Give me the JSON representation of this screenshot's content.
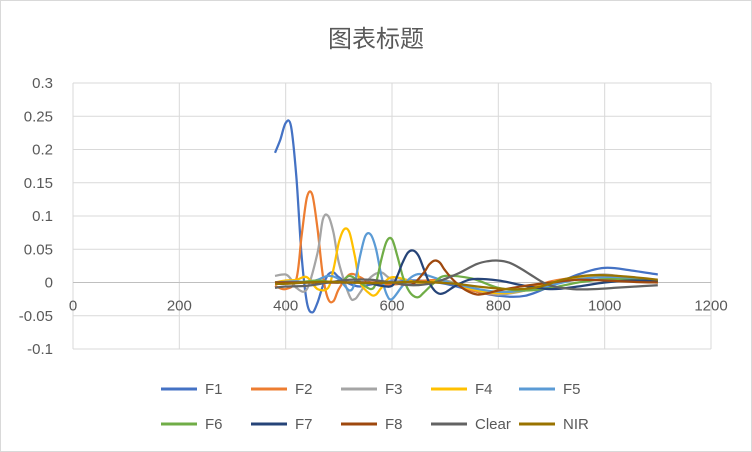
{
  "chart_data": {
    "type": "line",
    "title": "图表标题",
    "xlabel": "",
    "ylabel": "",
    "xlim": [
      0,
      1200
    ],
    "ylim": [
      -0.1,
      0.3
    ],
    "x_ticks": [
      0,
      200,
      400,
      600,
      800,
      1000,
      1200
    ],
    "y_ticks": [
      -0.1,
      -0.05,
      0,
      0.05,
      0.1,
      0.15,
      0.2,
      0.25,
      0.3
    ],
    "y_tick_labels": [
      "-0.1",
      "-0.05",
      "0",
      "0.05",
      "0.1",
      "0.15",
      "0.2",
      "0.25",
      "0.3"
    ],
    "x_tick_labels": [
      "0",
      "200",
      "400",
      "600",
      "800",
      "1000",
      "1200"
    ],
    "grid": "horizontal and vertical",
    "legend_position": "bottom",
    "series": [
      {
        "name": "F1",
        "color": "#4472C4",
        "x": [
          380,
          390,
          400,
          410,
          420,
          430,
          440,
          450,
          460,
          470,
          480,
          490,
          500,
          520,
          540,
          560,
          600,
          650,
          700,
          750,
          800,
          850,
          900,
          950,
          1000,
          1050,
          1100
        ],
        "values": [
          0.195,
          0.215,
          0.24,
          0.235,
          0.16,
          0.04,
          -0.03,
          -0.045,
          -0.03,
          -0.005,
          0.012,
          0.015,
          0.008,
          -0.002,
          -0.006,
          -0.003,
          0.002,
          0.003,
          -0.002,
          -0.012,
          -0.02,
          -0.02,
          -0.005,
          0.012,
          0.022,
          0.018,
          0.012
        ]
      },
      {
        "name": "F2",
        "color": "#ED7D31",
        "x": [
          380,
          400,
          420,
          430,
          440,
          450,
          460,
          470,
          480,
          490,
          500,
          520,
          540,
          560,
          600,
          650,
          700,
          750,
          800,
          850,
          900,
          950,
          1000,
          1050,
          1100
        ],
        "values": [
          -0.005,
          -0.01,
          0.005,
          0.07,
          0.128,
          0.132,
          0.08,
          0.01,
          -0.025,
          -0.028,
          -0.01,
          0.012,
          0.008,
          0.0,
          -0.003,
          0.002,
          0.003,
          -0.012,
          -0.018,
          -0.01,
          0.002,
          0.008,
          0.01,
          0.005,
          0.0
        ]
      },
      {
        "name": "F3",
        "color": "#A5A5A5",
        "x": [
          380,
          400,
          410,
          420,
          440,
          460,
          470,
          480,
          490,
          500,
          520,
          530,
          540,
          560,
          580,
          600,
          650,
          700,
          750,
          800,
          850,
          900,
          950,
          1000,
          1050,
          1100
        ],
        "values": [
          0.01,
          0.012,
          0.005,
          -0.008,
          -0.01,
          0.045,
          0.095,
          0.1,
          0.075,
          0.03,
          -0.02,
          -0.025,
          -0.015,
          0.008,
          0.015,
          0.005,
          -0.003,
          0.003,
          -0.01,
          -0.018,
          -0.012,
          0.0,
          0.008,
          0.012,
          0.006,
          0.0
        ]
      },
      {
        "name": "F4",
        "color": "#FFC000",
        "x": [
          380,
          400,
          420,
          440,
          460,
          480,
          490,
          500,
          510,
          520,
          530,
          540,
          560,
          570,
          580,
          600,
          650,
          700,
          750,
          800,
          850,
          900,
          950,
          1000,
          1050,
          1100
        ],
        "values": [
          0.0,
          0.003,
          0.004,
          0.008,
          -0.01,
          -0.008,
          0.02,
          0.06,
          0.08,
          0.075,
          0.04,
          0.0,
          -0.018,
          -0.018,
          -0.008,
          0.008,
          0.0,
          0.002,
          -0.01,
          -0.016,
          -0.012,
          0.0,
          0.008,
          0.01,
          0.006,
          0.0
        ]
      },
      {
        "name": "F5",
        "color": "#5B9BD5",
        "x": [
          380,
          420,
          440,
          460,
          480,
          500,
          520,
          530,
          540,
          550,
          560,
          570,
          580,
          590,
          600,
          620,
          640,
          660,
          700,
          750,
          800,
          850,
          900,
          950,
          1000,
          1050,
          1100
        ],
        "values": [
          0.0,
          0.002,
          0.0,
          0.004,
          0.01,
          0.005,
          -0.012,
          0.0,
          0.04,
          0.07,
          0.072,
          0.05,
          0.01,
          -0.018,
          -0.025,
          -0.005,
          0.01,
          0.012,
          0.002,
          -0.008,
          -0.014,
          -0.012,
          -0.004,
          0.005,
          0.008,
          0.006,
          0.003
        ]
      },
      {
        "name": "F6",
        "color": "#70AD47",
        "x": [
          380,
          420,
          460,
          500,
          520,
          540,
          560,
          570,
          580,
          590,
          600,
          610,
          620,
          630,
          640,
          650,
          660,
          680,
          700,
          750,
          800,
          850,
          900,
          950,
          1000,
          1050,
          1100
        ],
        "values": [
          0.0,
          0.0,
          0.003,
          0.0,
          0.01,
          0.0,
          -0.01,
          0.0,
          0.035,
          0.062,
          0.065,
          0.04,
          0.01,
          -0.01,
          -0.02,
          -0.022,
          -0.015,
          0.0,
          0.01,
          0.006,
          -0.008,
          -0.012,
          -0.008,
          0.0,
          0.005,
          0.004,
          0.002
        ]
      },
      {
        "name": "F7",
        "color": "#264478",
        "x": [
          380,
          440,
          500,
          550,
          580,
          600,
          610,
          620,
          630,
          640,
          650,
          660,
          670,
          680,
          690,
          700,
          720,
          750,
          800,
          850,
          900,
          950,
          1000,
          1050,
          1100
        ],
        "values": [
          0.0,
          0.0,
          0.0,
          0.0,
          -0.005,
          -0.005,
          0.01,
          0.03,
          0.045,
          0.048,
          0.04,
          0.02,
          0.0,
          -0.012,
          -0.017,
          -0.015,
          -0.005,
          0.005,
          0.003,
          -0.005,
          -0.01,
          -0.006,
          0.0,
          0.003,
          0.002
        ]
      },
      {
        "name": "F8",
        "color": "#9E480E",
        "x": [
          380,
          440,
          500,
          560,
          600,
          620,
          640,
          660,
          670,
          680,
          690,
          700,
          720,
          740,
          760,
          780,
          800,
          850,
          900,
          950,
          1000,
          1050,
          1100
        ],
        "values": [
          0.0,
          0.0,
          0.0,
          0.0,
          0.0,
          -0.003,
          -0.002,
          0.015,
          0.027,
          0.033,
          0.03,
          0.018,
          0.0,
          -0.012,
          -0.018,
          -0.016,
          -0.012,
          -0.005,
          0.0,
          0.004,
          0.003,
          0.001,
          0.0
        ]
      },
      {
        "name": "Clear",
        "color": "#636363",
        "x": [
          380,
          400,
          440,
          480,
          520,
          560,
          600,
          640,
          680,
          720,
          740,
          760,
          780,
          800,
          820,
          840,
          860,
          880,
          900,
          940,
          980,
          1020,
          1060,
          1100
        ],
        "values": [
          -0.008,
          -0.006,
          -0.005,
          0.0,
          0.004,
          0.004,
          0.0,
          -0.004,
          0.0,
          0.012,
          0.02,
          0.028,
          0.032,
          0.033,
          0.03,
          0.022,
          0.012,
          0.002,
          -0.005,
          -0.01,
          -0.01,
          -0.008,
          -0.006,
          -0.004
        ]
      },
      {
        "name": "NIR",
        "color": "#997300",
        "x": [
          380,
          400,
          440,
          480,
          520,
          560,
          600,
          640,
          680,
          720,
          760,
          800,
          840,
          880,
          920,
          960,
          1000,
          1040,
          1080,
          1100
        ],
        "values": [
          -0.002,
          -0.002,
          0.0,
          0.001,
          0.0,
          -0.001,
          0.0,
          0.001,
          0.0,
          -0.002,
          -0.006,
          -0.009,
          -0.01,
          -0.006,
          0.004,
          0.01,
          0.011,
          0.009,
          0.006,
          0.004
        ]
      }
    ]
  }
}
